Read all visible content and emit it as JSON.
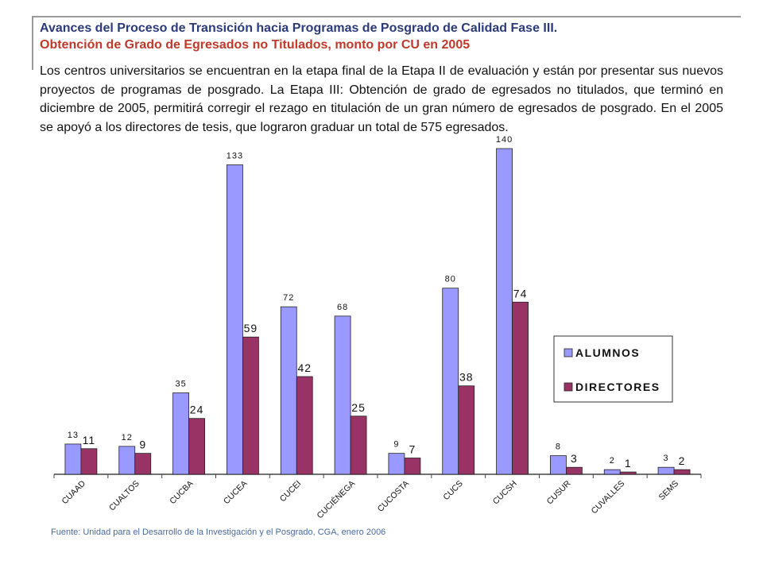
{
  "header": {
    "title": "Avances del Proceso de Transición hacia Programas de Posgrado de Calidad Fase III.",
    "subtitle": "Obtención de Grado de Egresados no Titulados, monto por CU en 2005"
  },
  "body_text": "Los centros universitarios se encuentran en la etapa final de la Etapa II de evaluación y están por presentar sus nuevos proyectos de programas de posgrado.  La Etapa III: Obtención de grado de egresados no titulados, que terminó en diciembre de 2005, permitirá corregir el rezago en titulación de un gran número de egresados de posgrado. En el 2005 se apoyó a los directores de tesis, que lograron graduar un total de 575 egresados.",
  "footer": "Fuente: Unidad para el Desarrollo de la Investigación y el Posgrado, CGA, enero 2006",
  "colors": {
    "title": "#2b3a7a",
    "subtitle": "#c0392b",
    "alumnos": "#9999ff",
    "directores": "#993366"
  },
  "chart_data": {
    "type": "bar",
    "categories": [
      "CUAAD",
      "CUALTOS",
      "CUCBA",
      "CUCEA",
      "CUCEI",
      "CUCIÉNEGA",
      "CUCOSTA",
      "CUCS",
      "CUCSH",
      "CUSUR",
      "CUVALLES",
      "SEMS"
    ],
    "series": [
      {
        "name": "ALUMNOS",
        "values": [
          13,
          12,
          35,
          133,
          72,
          68,
          9,
          80,
          140,
          8,
          2,
          3
        ]
      },
      {
        "name": "DIRECTORES",
        "values": [
          11,
          9,
          24,
          59,
          42,
          25,
          7,
          38,
          74,
          3,
          1,
          2
        ]
      }
    ],
    "ylim": [
      0,
      140
    ],
    "legend_position": "right",
    "grid": false
  }
}
